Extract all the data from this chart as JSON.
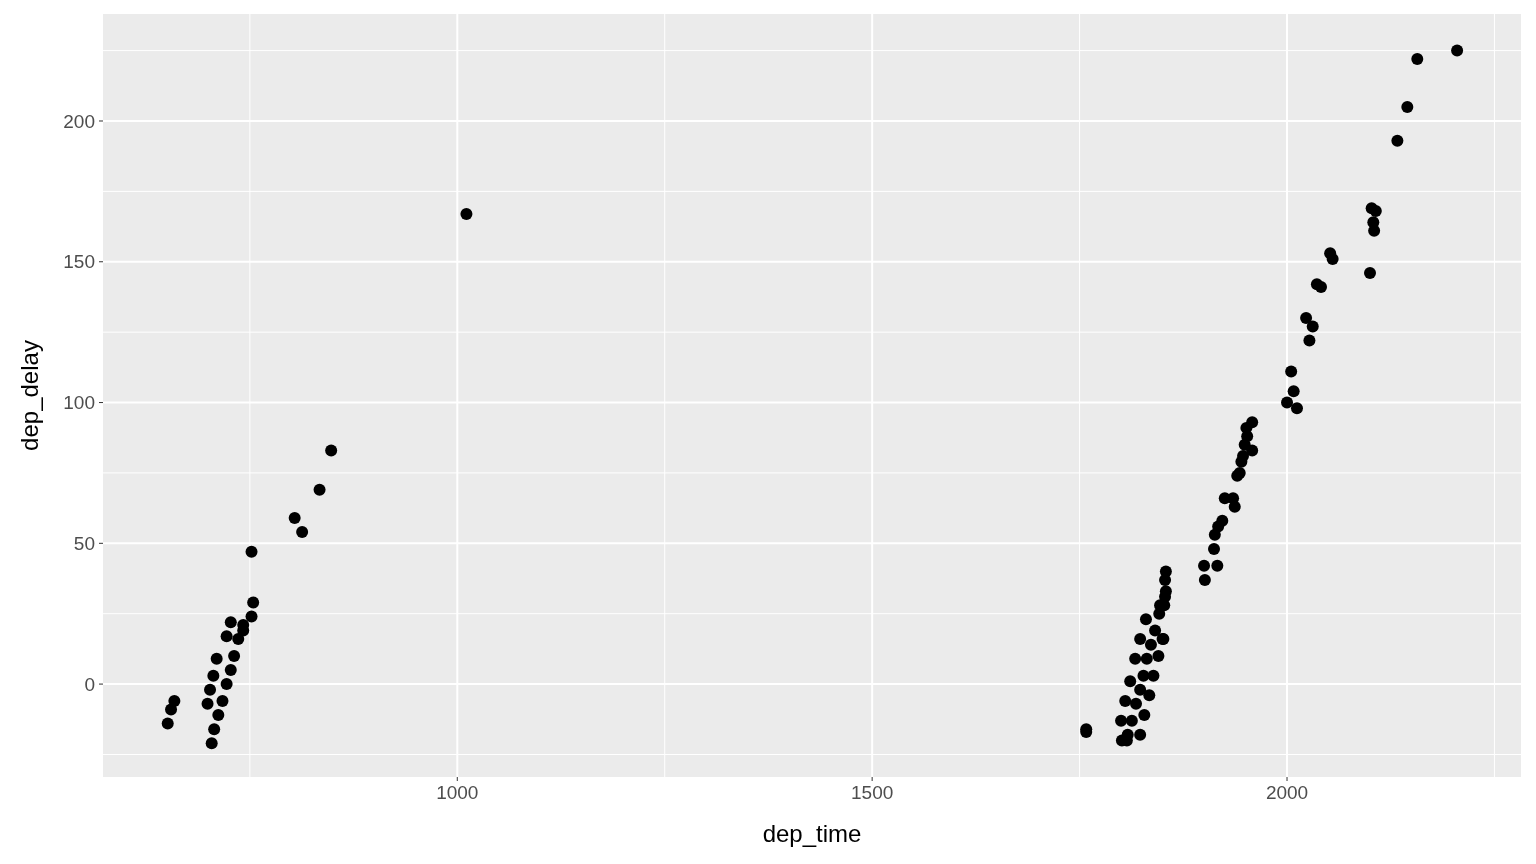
{
  "chart_data": {
    "type": "scatter",
    "xlabel": "dep_time",
    "ylabel": "dep_delay",
    "xlim": [
      573,
      2282
    ],
    "ylim": [
      -33,
      238
    ],
    "xticks": [
      {
        "value": 750,
        "label": null
      },
      1000,
      {
        "value": 1250,
        "label": null
      },
      1500,
      {
        "value": 1750,
        "label": null
      },
      2000,
      {
        "value": 2250,
        "label": null
      }
    ],
    "yticks": [
      {
        "value": -25,
        "label": null
      },
      0,
      {
        "value": 25,
        "label": null
      },
      50,
      {
        "value": 75,
        "label": null
      },
      100,
      {
        "value": 125,
        "label": null
      },
      150,
      {
        "value": 175,
        "label": null
      },
      200,
      {
        "value": 225,
        "label": null
      }
    ],
    "grid": true,
    "marker": "circle",
    "series": [
      {
        "color": "#000000",
        "x": [
          651,
          655,
          659,
          704,
          699,
          702,
          706,
          710,
          707,
          712,
          717,
          722,
          727,
          731,
          736,
          742,
          727,
          722,
          752,
          754,
          752,
          742,
          804,
          813,
          834,
          848,
          1011,
          1758,
          1758,
          1801,
          1807,
          1808,
          1813,
          1818,
          1823,
          1827,
          1831,
          1836,
          1841,
          1846,
          1800,
          1805,
          1811,
          1817,
          1823,
          1830,
          1823,
          1828,
          1834,
          1839,
          1845,
          1850,
          1854,
          1853,
          1854,
          1853,
          1847,
          1852,
          1851,
          1901,
          1900,
          1916,
          1912,
          1913,
          1917,
          1922,
          1925,
          1935,
          1937,
          1940,
          1943,
          1945,
          1947,
          1949,
          1952,
          1951,
          1958,
          1958,
          2000,
          2005,
          2008,
          2012,
          2023,
          2027,
          2031,
          2036,
          2041,
          2052,
          2055,
          2100,
          2102,
          2107,
          2104,
          2105,
          2133,
          2145,
          2157,
          2205
        ],
        "values": [
          -14,
          -9,
          -6,
          -21,
          -7,
          -2,
          3,
          9,
          -16,
          -11,
          -6,
          0,
          5,
          10,
          16,
          19,
          22,
          17,
          47,
          29,
          24,
          21,
          59,
          54,
          69,
          83,
          167,
          -16,
          -17,
          -20,
          -20,
          -18,
          -13,
          -7,
          -2,
          3,
          9,
          14,
          19,
          25,
          -13,
          -6,
          1,
          9,
          16,
          23,
          -18,
          -11,
          -4,
          3,
          10,
          16,
          40,
          37,
          33,
          31,
          28,
          28,
          16,
          37,
          42,
          42,
          48,
          53,
          56,
          58,
          66,
          66,
          63,
          74,
          75,
          79,
          81,
          85,
          88,
          91,
          93,
          83,
          100,
          111,
          104,
          98,
          130,
          122,
          127,
          142,
          141,
          153,
          151,
          146,
          169,
          168,
          164,
          161,
          193,
          205,
          222,
          225
        ]
      }
    ]
  }
}
